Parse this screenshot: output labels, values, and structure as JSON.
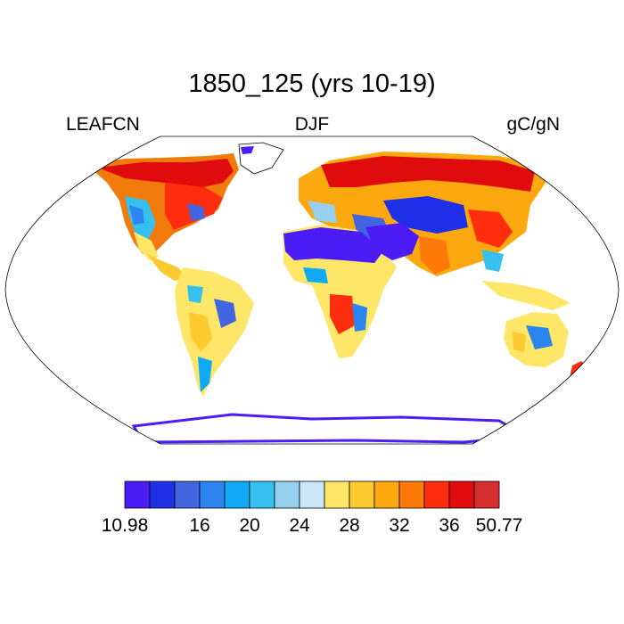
{
  "title": "1850_125 (yrs 10-19)",
  "variable": "LEAFCN",
  "season": "DJF",
  "units": "gC/gN",
  "projection": "robinson",
  "colorbar": {
    "colors": [
      "#4b1cf6",
      "#2030e8",
      "#4265e0",
      "#2b84f0",
      "#10a9f5",
      "#35c0ef",
      "#97cfee",
      "#cde7f8",
      "#fde668",
      "#fcc92f",
      "#fda80e",
      "#fd7a09",
      "#fd2d0e",
      "#df0b0c",
      "#d42e2e"
    ],
    "labels": [
      "10.98",
      "16",
      "20",
      "24",
      "28",
      "32",
      "36",
      "50.77"
    ]
  }
}
